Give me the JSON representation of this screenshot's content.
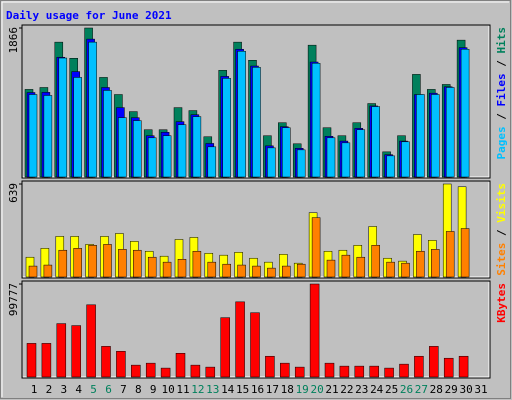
{
  "chart_data": {
    "type": "bar",
    "title": "Daily usage for June 2021",
    "categories": [
      "1",
      "2",
      "3",
      "4",
      "5",
      "6",
      "7",
      "8",
      "9",
      "10",
      "11",
      "12",
      "13",
      "14",
      "15",
      "16",
      "17",
      "18",
      "19",
      "20",
      "21",
      "22",
      "23",
      "24",
      "25",
      "26",
      "27",
      "28",
      "29",
      "30",
      "31"
    ],
    "category_colors": [
      "#000000",
      "#000000",
      "#000000",
      "#000000",
      "#00805c",
      "#00805c",
      "#000000",
      "#000000",
      "#000000",
      "#000000",
      "#000000",
      "#00805c",
      "#00805c",
      "#000000",
      "#000000",
      "#000000",
      "#000000",
      "#000000",
      "#00805c",
      "#00805c",
      "#000000",
      "#000000",
      "#000000",
      "#000000",
      "#000000",
      "#00805c",
      "#00805c",
      "#000000",
      "#000000",
      "#000000",
      "#000000"
    ],
    "panels": [
      {
        "ylim": [
          0,
          1866
        ],
        "yticks": [
          1866
        ],
        "series": [
          {
            "name": "Hits",
            "color": "#00805c",
            "values": [
              1097,
              1121,
              1689,
              1487,
              1866,
              1247,
              1033,
              819,
              592,
              592,
              869,
              832,
              504,
              1336,
              1689,
              1462,
              517,
              680,
              416,
              1651,
              617,
              517,
              680,
              920,
              315,
              517,
              1285,
              1097,
              1159,
              1714,
              0
            ]
          },
          {
            "name": "Files",
            "color": "#0000ff",
            "values": [
              1058,
              1060,
              1500,
              1320,
              1727,
              1121,
              869,
              743,
              517,
              560,
              693,
              780,
              420,
              1260,
              1600,
              1390,
              390,
              630,
              360,
              1440,
              510,
              450,
              610,
              890,
              280,
              450,
              1033,
              1050,
              1130,
              1620,
              0
            ]
          },
          {
            "name": "Pages",
            "color": "#00c0ff",
            "values": [
              1033,
              1021,
              1490,
              1247,
              1689,
              1084,
              743,
              706,
              491,
              517,
              655,
              756,
              378,
              1235,
              1575,
              1373,
              365,
              617,
              340,
              1424,
              491,
              428,
              592,
              882,
              265,
              441,
              1033,
              1033,
              1121,
              1600,
              0
            ]
          }
        ]
      },
      {
        "ylim": [
          0,
          639
        ],
        "yticks": [
          639
        ],
        "series": [
          {
            "name": "Visits",
            "color": "#ffff00",
            "values": [
              136,
              197,
              279,
              279,
              224,
              279,
              299,
              245,
              177,
              143,
              258,
              272,
              163,
              150,
              170,
              129,
              102,
              156,
              95,
              442,
              177,
              184,
              218,
              347,
              129,
              109,
              292,
              252,
              639,
              620,
              0
            ]
          },
          {
            "name": "Sites",
            "color": "#ff8000",
            "values": [
              75,
              82,
              184,
              197,
              218,
              224,
              190,
              184,
              136,
              102,
              122,
              177,
              102,
              88,
              82,
              75,
              61,
              75,
              88,
              408,
              116,
              150,
              136,
              218,
              102,
              95,
              177,
              190,
              313,
              333,
              0
            ]
          }
        ]
      },
      {
        "ylim": [
          0,
          99777
        ],
        "yticks": [
          99777
        ],
        "series": [
          {
            "name": "KBytes",
            "color": "#ff0000",
            "values": [
              36074,
              36074,
              57294,
              55172,
              77453,
              32891,
              27586,
              12732,
              14854,
              9549,
              25464,
              12732,
              10610,
              63660,
              80636,
              68965,
              22281,
              14854,
              10610,
              99777,
              14854,
              11671,
              11671,
              11671,
              9549,
              13793,
              22281,
              32891,
              20159,
              22281,
              0
            ]
          }
        ]
      }
    ]
  }
}
